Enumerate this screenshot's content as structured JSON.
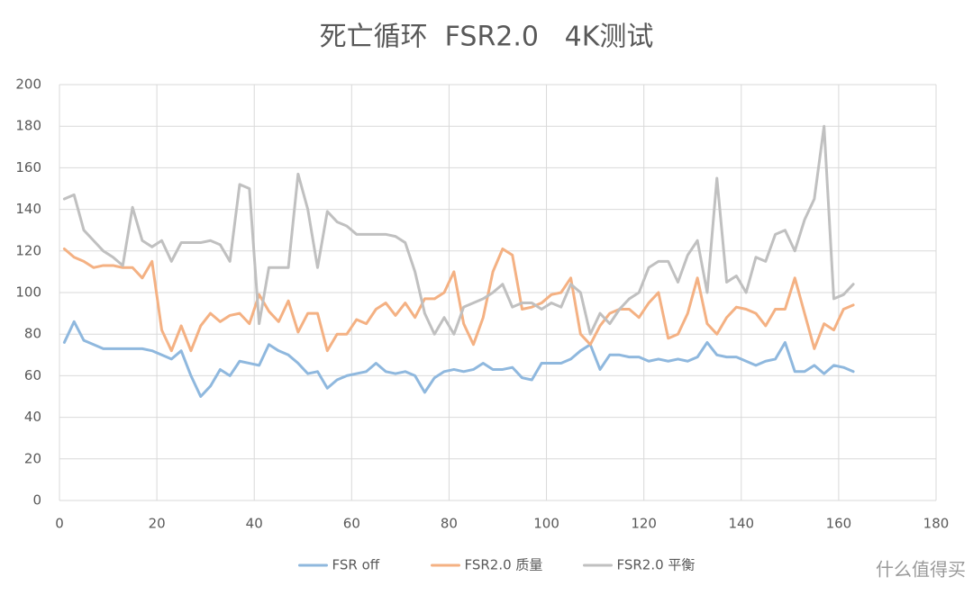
{
  "chart_data": {
    "type": "line",
    "title": "死亡循环  FSR2.0   4K测试",
    "x": [
      1,
      3,
      5,
      7,
      9,
      11,
      13,
      15,
      17,
      19,
      21,
      23,
      25,
      27,
      29,
      31,
      33,
      35,
      37,
      39,
      41,
      43,
      45,
      47,
      49,
      51,
      53,
      55,
      57,
      59,
      61,
      63,
      65,
      67,
      69,
      71,
      73,
      75,
      77,
      79,
      81,
      83,
      85,
      87,
      89,
      91,
      93,
      95,
      97,
      99,
      101,
      103,
      105,
      107,
      109,
      111,
      113,
      115,
      117,
      119,
      121,
      123,
      125,
      127,
      129,
      131,
      133,
      135,
      137,
      139,
      141,
      143,
      145,
      147,
      149,
      151,
      153,
      155,
      157,
      159,
      161,
      163
    ],
    "series": [
      {
        "name": "FSR off",
        "color": "#8fb8de",
        "values": [
          76,
          86,
          77,
          75,
          73,
          73,
          73,
          73,
          73,
          72,
          70,
          68,
          72,
          60,
          50,
          55,
          63,
          60,
          67,
          66,
          65,
          75,
          72,
          70,
          66,
          61,
          62,
          54,
          58,
          60,
          61,
          62,
          66,
          62,
          61,
          62,
          60,
          52,
          59,
          62,
          63,
          62,
          63,
          66,
          63,
          63,
          64,
          59,
          58,
          66,
          66,
          66,
          68,
          72,
          75,
          63,
          70,
          70,
          69,
          69,
          67,
          68,
          67,
          68,
          67,
          69,
          76,
          70,
          69,
          69,
          67,
          65,
          67,
          68,
          76,
          62,
          62,
          65,
          61,
          65,
          64,
          62
        ]
      },
      {
        "name": "FSR2.0 质量",
        "color": "#f4b183",
        "values": [
          121,
          117,
          115,
          112,
          113,
          113,
          112,
          112,
          107,
          115,
          82,
          72,
          84,
          72,
          84,
          90,
          86,
          89,
          90,
          85,
          99,
          91,
          86,
          96,
          81,
          90,
          90,
          72,
          80,
          80,
          87,
          85,
          92,
          95,
          89,
          95,
          88,
          97,
          97,
          100,
          110,
          85,
          75,
          88,
          110,
          121,
          118,
          92,
          93,
          95,
          99,
          100,
          107,
          80,
          75,
          84,
          90,
          92,
          92,
          88,
          95,
          100,
          78,
          80,
          90,
          107,
          85,
          80,
          88,
          93,
          92,
          90,
          84,
          92,
          92,
          107,
          90,
          73,
          85,
          82,
          92,
          94
        ]
      },
      {
        "name": "FSR2.0 平衡",
        "color": "#c0c0c0",
        "values": [
          145,
          147,
          130,
          125,
          120,
          117,
          113,
          141,
          125,
          122,
          125,
          115,
          124,
          124,
          124,
          125,
          123,
          115,
          152,
          150,
          85,
          112,
          112,
          112,
          157,
          140,
          112,
          139,
          134,
          132,
          128,
          128,
          128,
          128,
          127,
          124,
          110,
          90,
          80,
          88,
          80,
          93,
          95,
          97,
          100,
          104,
          93,
          95,
          95,
          92,
          95,
          93,
          104,
          100,
          80,
          90,
          85,
          92,
          97,
          100,
          112,
          115,
          115,
          105,
          118,
          125,
          100,
          155,
          105,
          108,
          100,
          117,
          115,
          128,
          130,
          120,
          135,
          145,
          180,
          97,
          99,
          104
        ]
      }
    ],
    "xlim": [
      0,
      180
    ],
    "xticks": [
      0,
      20,
      40,
      60,
      80,
      100,
      120,
      140,
      160,
      180
    ],
    "ylim": [
      0,
      200
    ],
    "yticks": [
      0,
      20,
      40,
      60,
      80,
      100,
      120,
      140,
      160,
      180,
      200
    ],
    "grid": true,
    "legend": "bottom"
  },
  "watermark": "什么值得买"
}
